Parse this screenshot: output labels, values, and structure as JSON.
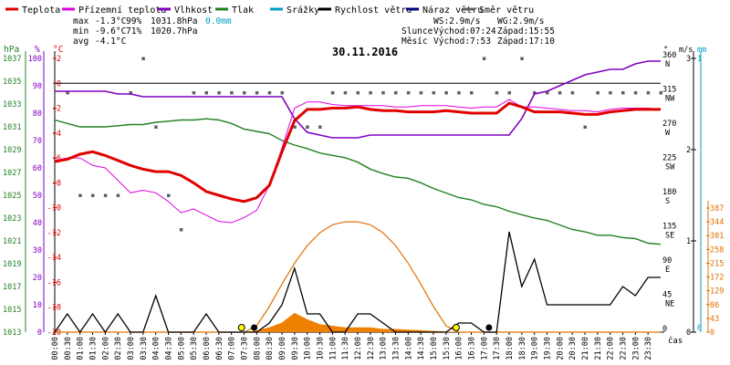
{
  "chart_data": {
    "type": "line",
    "date": "30.11.2016",
    "legend": [
      {
        "key": "temp",
        "label": "Teplota",
        "color": "#e00000"
      },
      {
        "key": "feels",
        "label": "Přízemní teplota",
        "color": "#e000e0"
      },
      {
        "key": "humidity",
        "label": "Vlhkost",
        "color": "#8000c0"
      },
      {
        "key": "pressure",
        "label": "Tlak",
        "color": "#208020"
      },
      {
        "key": "rain",
        "label": "Srážky",
        "color": "#00a0c0"
      },
      {
        "key": "wind",
        "label": "Rychlost větru",
        "color": "#000000"
      },
      {
        "key": "gust",
        "label": "Náraz větru",
        "color": "#000080"
      },
      {
        "key": "winddir",
        "label": "Směr větru",
        "color": "#606060"
      }
    ],
    "stats": {
      "max": {
        "label": "max",
        "temp": "-1.3°C",
        "hum": "99%",
        "press": "1031.8hPa",
        "rain": "0.0mm"
      },
      "min": {
        "label": "min",
        "temp": "-9.6°C",
        "hum": "71%",
        "press": "1020.7hPa"
      },
      "avg": {
        "label": "avg",
        "temp": "-4.1°C"
      }
    },
    "wind_info": {
      "ws": "WS:2.9m/s",
      "wg": "WG:2.9m/s"
    },
    "sun": {
      "label": "Slunce",
      "rise": "Východ:07:24",
      "set": "Západ:15:55"
    },
    "moon": {
      "label": "Měsíc",
      "rise": "Východ:7:53",
      "set": "Západ:17:10"
    },
    "axes": {
      "hpa": {
        "title": "hPa",
        "color": "#208020",
        "ticks": [
          "1037",
          "1035",
          "1033",
          "1031",
          "1029",
          "1027",
          "1025",
          "1023",
          "1021",
          "1019",
          "1017",
          "1015",
          "1013"
        ]
      },
      "pct": {
        "title": "%",
        "color": "#8000c0",
        "ticks": [
          "100",
          "90",
          "80",
          "70",
          "60",
          "50",
          "40",
          "30",
          "20",
          "10",
          "0"
        ]
      },
      "temp": {
        "title": "°C",
        "color": "#e00000",
        "ticks": [
          "2",
          "0",
          "-2",
          "-4",
          "-6",
          "-8",
          "-10",
          "-12",
          "-14",
          "-16",
          "-18",
          "-20"
        ]
      },
      "dir": {
        "title": "°",
        "ticks": [
          "360",
          "315",
          "270",
          "225",
          "180",
          "135",
          "90",
          "45",
          "0"
        ],
        "names": [
          "N",
          "NW",
          "W",
          "SW",
          "S",
          "SE",
          "E",
          "NE",
          ""
        ]
      },
      "ms": {
        "title": "m/s",
        "ticks": [
          "3",
          "2",
          "1",
          "0"
        ]
      },
      "mm": {
        "title": "mm",
        "ticks": [
          "1",
          "0"
        ]
      },
      "solar": {
        "color": "#e07000",
        "ticks": [
          "387",
          "344",
          "301",
          "258",
          "215",
          "172",
          "129",
          "86",
          "43",
          "0"
        ]
      },
      "xlabel": "čas",
      "times": [
        "00:00",
        "00:30",
        "01:00",
        "01:30",
        "02:00",
        "02:30",
        "03:00",
        "03:30",
        "04:00",
        "04:30",
        "05:00",
        "05:30",
        "06:00",
        "06:30",
        "07:00",
        "07:30",
        "08:00",
        "08:30",
        "09:00",
        "09:30",
        "10:00",
        "10:30",
        "11:00",
        "11:30",
        "12:00",
        "12:30",
        "13:00",
        "13:30",
        "14:00",
        "14:30",
        "15:00",
        "15:30",
        "16:00",
        "16:30",
        "17:00",
        "17:30",
        "18:00",
        "18:30",
        "19:00",
        "19:30",
        "20:00",
        "20:30",
        "21:00",
        "21:30",
        "22:00",
        "22:30",
        "23:00",
        "23:30"
      ]
    },
    "series": {
      "temp_x": [
        0,
        0.5,
        1,
        1.5,
        2,
        2.5,
        3,
        3.5,
        4,
        4.5,
        5,
        5.5,
        6,
        6.5,
        7,
        7.5,
        8,
        8.5,
        9,
        9.5,
        10,
        10.5,
        11,
        11.5,
        12,
        12.5,
        13,
        13.5,
        14,
        14.5,
        15,
        15.5,
        16,
        16.5,
        17,
        17.5,
        18,
        18.5,
        19,
        19.5,
        20,
        20.5,
        21,
        21.5,
        22,
        22.5,
        23,
        23.5,
        24
      ],
      "temp": [
        -6.3,
        -6.1,
        -5.7,
        -5.5,
        -5.8,
        -6.2,
        -6.6,
        -6.9,
        -7.1,
        -7.1,
        -7.4,
        -8.0,
        -8.7,
        -9.0,
        -9.3,
        -9.5,
        -9.2,
        -8.2,
        -5.5,
        -3.0,
        -2.1,
        -2.1,
        -2.0,
        -2.0,
        -1.9,
        -2.1,
        -2.2,
        -2.2,
        -2.3,
        -2.3,
        -2.3,
        -2.2,
        -2.3,
        -2.4,
        -2.4,
        -2.4,
        -1.6,
        -1.9,
        -2.3,
        -2.3,
        -2.3,
        -2.4,
        -2.5,
        -2.5,
        -2.3,
        -2.2,
        -2.1,
        -2.1,
        -2.1
      ],
      "feels": [
        -6.2,
        -6.0,
        -6.0,
        -6.6,
        -6.8,
        -7.8,
        -8.8,
        -8.6,
        -8.8,
        -9.5,
        -10.4,
        -10.1,
        -10.6,
        -11.1,
        -11.2,
        -10.8,
        -10.2,
        -8.2,
        -5.2,
        -2.0,
        -1.5,
        -1.5,
        -1.7,
        -1.8,
        -1.8,
        -1.8,
        -1.8,
        -1.9,
        -1.9,
        -1.8,
        -1.8,
        -1.8,
        -1.9,
        -2.0,
        -1.9,
        -1.9,
        -1.3,
        -1.9,
        -1.9,
        -2.0,
        -2.1,
        -2.2,
        -2.2,
        -2.3,
        -2.1,
        -2.0,
        -2.0,
        -2.0,
        -2.1
      ],
      "humidity": [
        88,
        88,
        88,
        88,
        88,
        87,
        87,
        86,
        86,
        86,
        86,
        86,
        86,
        86,
        86,
        86,
        86,
        86,
        86,
        78,
        73,
        72,
        71,
        71,
        71,
        72,
        72,
        72,
        72,
        72,
        72,
        72,
        72,
        72,
        72,
        72,
        72,
        78,
        87,
        88,
        90,
        92,
        94,
        95,
        96,
        96,
        98,
        99,
        99
      ],
      "pressure": [
        1031.6,
        1031.3,
        1031.0,
        1031.0,
        1031.0,
        1031.1,
        1031.2,
        1031.2,
        1031.4,
        1031.5,
        1031.6,
        1031.6,
        1031.7,
        1031.6,
        1031.3,
        1030.8,
        1030.6,
        1030.4,
        1029.8,
        1029.4,
        1029.1,
        1028.7,
        1028.5,
        1028.3,
        1027.9,
        1027.3,
        1026.9,
        1026.6,
        1026.5,
        1026.1,
        1025.6,
        1025.2,
        1024.8,
        1024.6,
        1024.2,
        1024.0,
        1023.6,
        1023.3,
        1023.0,
        1022.8,
        1022.4,
        1022.0,
        1021.8,
        1021.5,
        1021.5,
        1021.3,
        1021.2,
        1020.8,
        1020.7
      ],
      "wind_x": [
        0,
        0.5,
        1,
        1.5,
        2,
        2.5,
        3,
        3.5,
        4,
        4.5,
        5,
        5.5,
        6,
        6.5,
        7,
        7.5,
        8,
        8.5,
        9,
        9.5,
        10,
        10.5,
        11,
        11.5,
        12,
        12.5,
        13,
        13.5,
        14,
        14.5,
        15,
        15.5,
        16,
        16.5,
        17,
        17.5,
        18,
        18.5,
        19,
        19.5,
        20,
        20.5,
        21,
        21.5,
        22,
        22.5,
        23,
        23.5,
        24
      ],
      "wind": [
        0,
        0.2,
        0,
        0.2,
        0,
        0.2,
        0,
        0,
        0.4,
        0,
        0,
        0,
        0.2,
        0,
        0,
        0,
        0,
        0.1,
        0.3,
        0.7,
        0.2,
        0.2,
        0,
        0,
        0.2,
        0.2,
        0.1,
        0,
        0,
        0,
        0,
        0,
        0.1,
        0.1,
        0,
        0,
        1.1,
        0.5,
        0.8,
        0.3,
        0.3,
        0.3,
        0.3,
        0.3,
        0.3,
        0.5,
        0.4,
        0.6,
        0.6
      ],
      "solar": [
        0,
        0,
        0,
        0,
        0,
        0,
        0,
        0,
        0,
        0,
        0,
        0,
        0,
        0,
        0,
        0,
        5,
        15,
        30,
        60,
        40,
        25,
        20,
        15,
        15,
        15,
        10,
        10,
        8,
        6,
        4,
        2,
        1,
        0,
        0,
        0,
        0,
        0,
        0,
        0,
        0,
        0,
        0,
        0,
        0,
        0,
        0,
        0,
        0
      ],
      "solar_theory": [
        0,
        0,
        0,
        0,
        0,
        0,
        0,
        0,
        0,
        0,
        0,
        0,
        0,
        0,
        0,
        0,
        20,
        80,
        150,
        215,
        270,
        310,
        335,
        344,
        344,
        335,
        310,
        270,
        215,
        150,
        80,
        20,
        0,
        0,
        0,
        0,
        0,
        0,
        0,
        0,
        0,
        0,
        0,
        0,
        0,
        0,
        0,
        0,
        0
      ],
      "winddir": [
        null,
        {
          "v": 315
        },
        {
          "v": 180
        },
        {
          "v": 180
        },
        {
          "v": 180
        },
        {
          "v": 180
        },
        {
          "v": 315
        },
        {
          "v": 360
        },
        {
          "v": 270
        },
        {
          "v": 180
        },
        {
          "v": 135
        },
        {
          "v": 315
        },
        {
          "v": 315
        },
        {
          "v": 315
        },
        {
          "v": 315
        },
        {
          "v": 315
        },
        {
          "v": 315
        },
        {
          "v": 315
        },
        {
          "v": 315
        },
        {
          "v": 270
        },
        {
          "v": 270
        },
        {
          "v": 270
        },
        {
          "v": 315
        },
        {
          "v": 315
        },
        {
          "v": 315
        },
        {
          "v": 315
        },
        {
          "v": 315
        },
        {
          "v": 315
        },
        {
          "v": 315
        },
        {
          "v": 315
        },
        {
          "v": 315
        },
        {
          "v": 315
        },
        {
          "v": 315
        },
        {
          "v": 315
        },
        {
          "v": 360
        },
        {
          "v": 315
        },
        {
          "v": 315
        },
        {
          "v": 360
        },
        {
          "v": 315
        },
        {
          "v": 315
        },
        {
          "v": 315
        },
        {
          "v": 315
        },
        {
          "v": 270
        },
        {
          "v": 315
        },
        {
          "v": 315
        },
        {
          "v": 315
        },
        {
          "v": 315
        },
        {
          "v": 315
        },
        {
          "v": 315
        }
      ]
    },
    "markers": {
      "sunrise": 7.4,
      "sunset": 15.9,
      "moonrise": 7.9,
      "moonset": 17.2
    }
  }
}
